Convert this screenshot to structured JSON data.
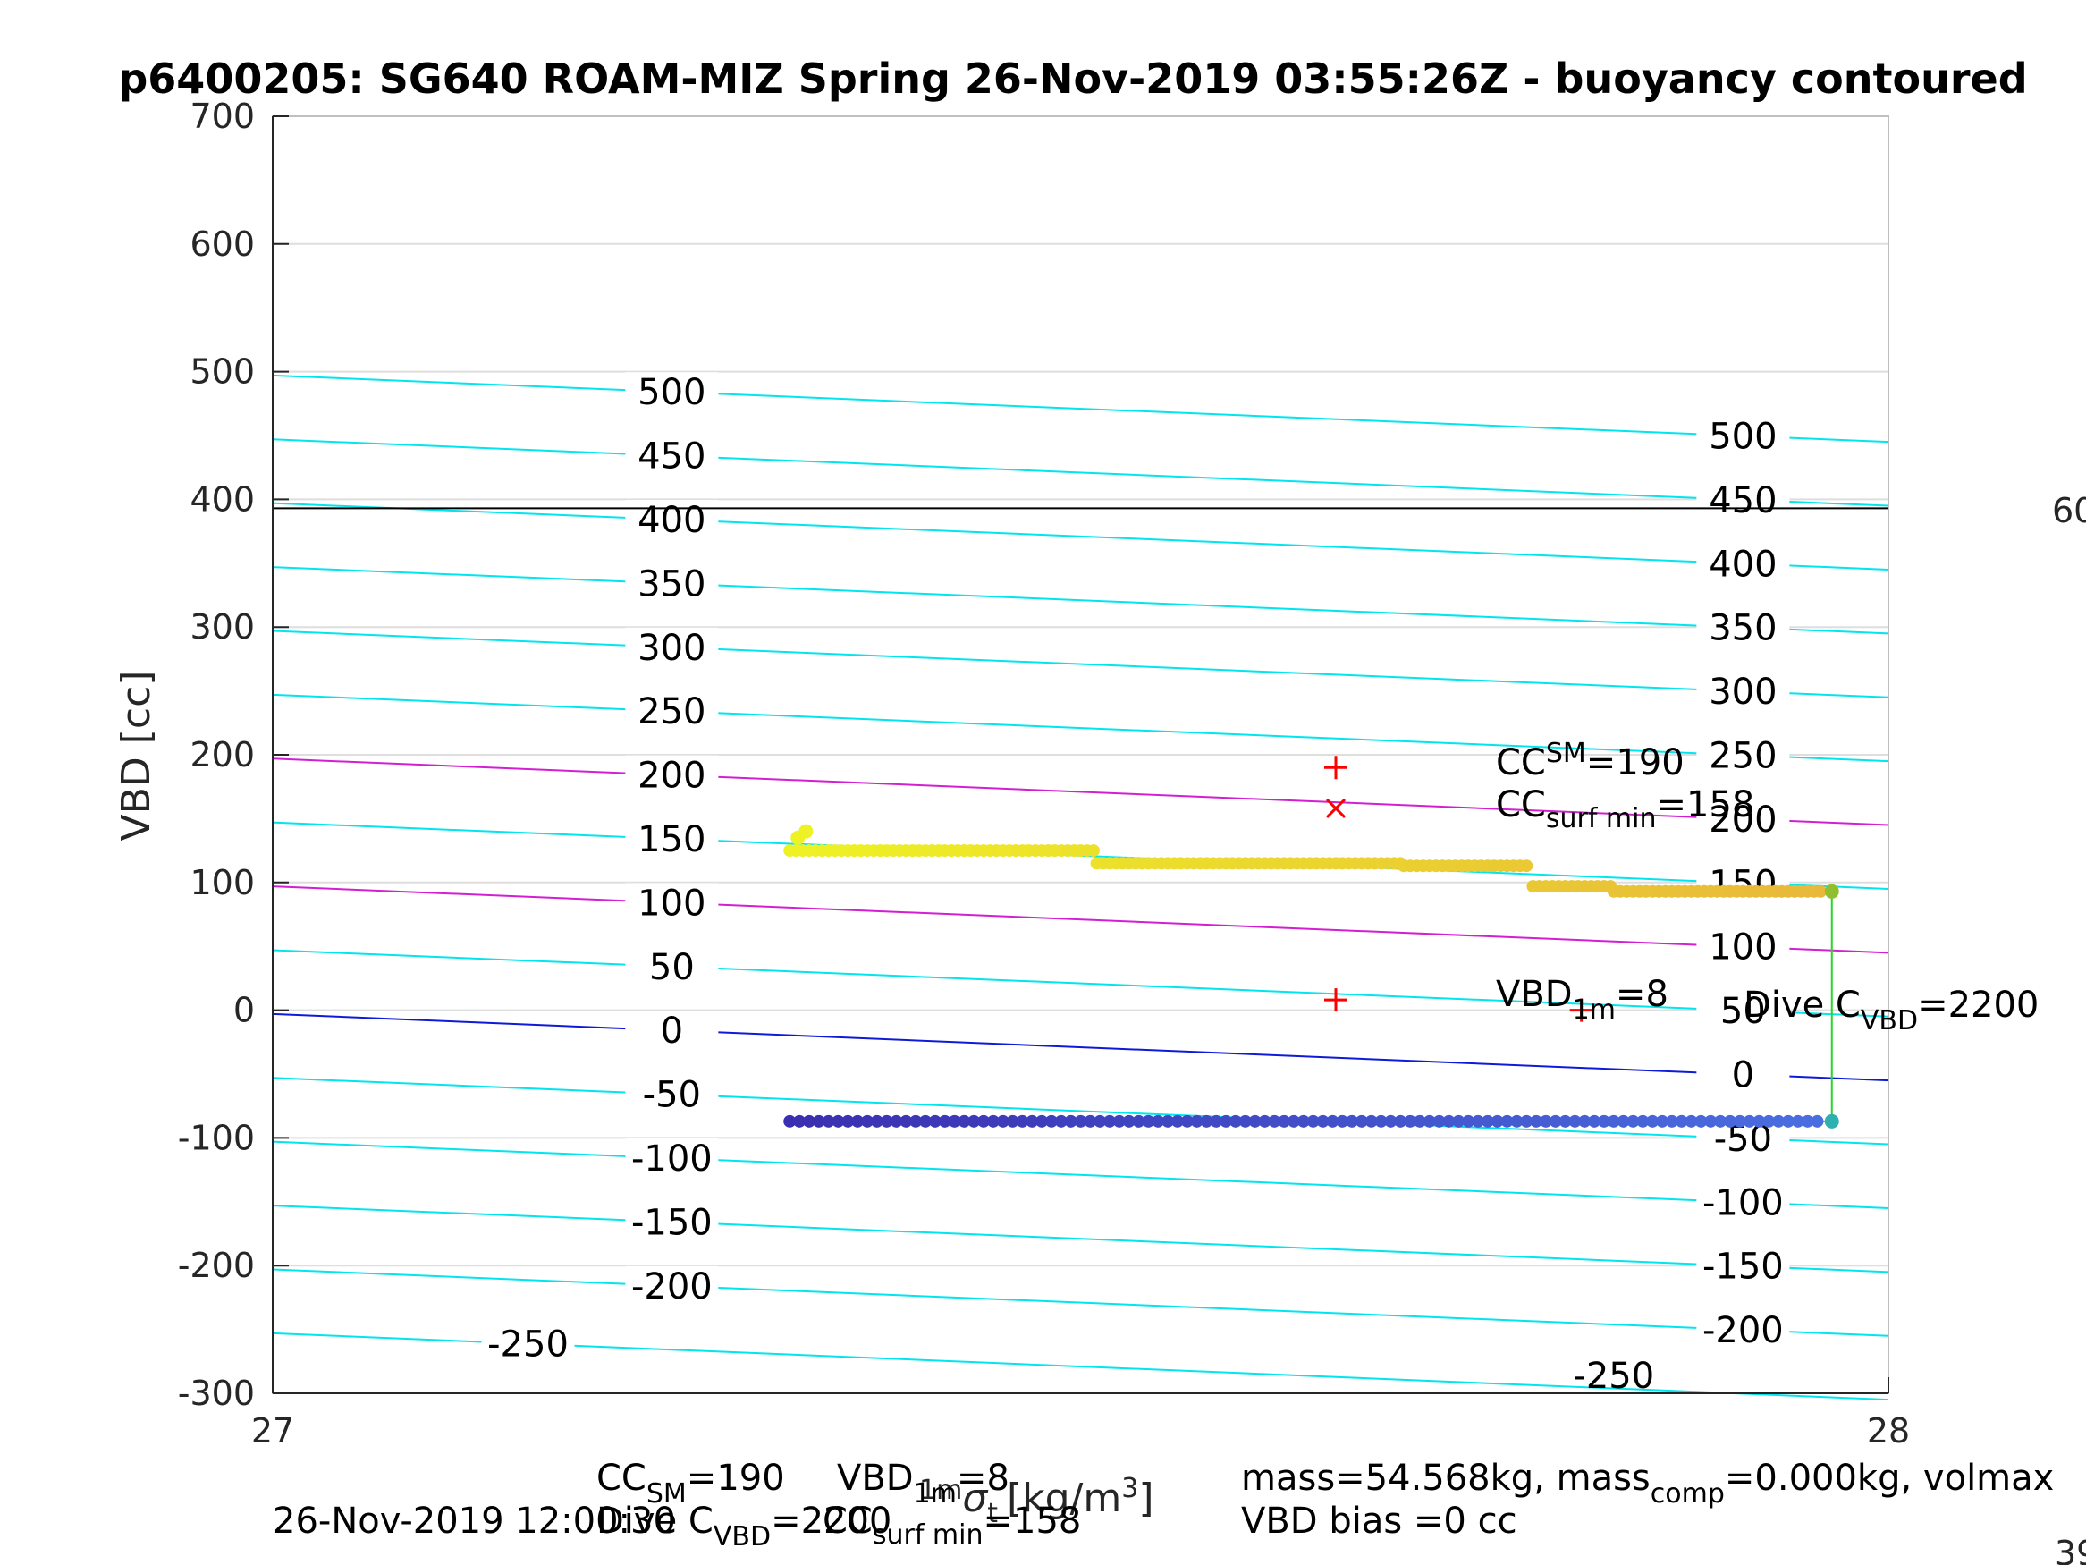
{
  "chart_data": {
    "type": "scatter",
    "title": "p6400205: SG640 ROAM-MIZ Spring 26-Nov-2019 03:55:26Z - buoyancy contoured",
    "ylabel": "VBD [cc]",
    "xlabel": {
      "text": "[kg/m",
      "sup": "3",
      "close": "]",
      "prefix_sup": "1m",
      "sym": "σ",
      "sub": "t"
    },
    "xlim": [
      27,
      28
    ],
    "ylim": [
      -300,
      700
    ],
    "xticks": [
      "27",
      "28"
    ],
    "yticks": [
      "700",
      "600",
      "500",
      "400",
      "300",
      "200",
      "100",
      "0",
      "-100",
      "-200",
      "-300"
    ],
    "grid": true,
    "reference_line_vbd": 393,
    "contours": {
      "color": "#00e5ee",
      "levels": [
        -250,
        -200,
        -150,
        -100,
        -50,
        0,
        50,
        100,
        150,
        200,
        250,
        300,
        350,
        400,
        450,
        500
      ],
      "left_labels": [
        "500",
        "450",
        "400",
        "350",
        "300",
        "250",
        "200",
        "150",
        "100",
        "50",
        "0",
        "-50",
        "-100",
        "-150",
        "-200",
        "-250"
      ],
      "right_labels": [
        "500",
        "450",
        "400",
        "350",
        "300",
        "250",
        "200",
        "150",
        "100",
        "50",
        "0",
        "-50",
        "-100",
        "-150",
        "-200",
        "-250"
      ],
      "highlight_magenta_levels": [
        200,
        100
      ],
      "highlight_blue_level": 0
    },
    "series": [
      {
        "label_hint": "climb",
        "color_start": "#eef224",
        "color_end": "#e8b83a",
        "segments": [
          {
            "x": [
              27.32,
              27.51
            ],
            "y": 125
          },
          {
            "x": [
              27.51,
              27.7
            ],
            "y": 115
          },
          {
            "x": [
              27.7,
              27.78
            ],
            "y": 113
          },
          {
            "x": [
              27.78,
              27.83
            ],
            "y": 97
          },
          {
            "x": [
              27.83,
              27.96
            ],
            "y": 93
          }
        ]
      },
      {
        "label_hint": "dive",
        "color_start": "#3a2fb0",
        "color_end": "#4a6ee0",
        "segments": [
          {
            "x": [
              27.32,
              27.96
            ],
            "y": -87
          }
        ]
      }
    ],
    "markers": [
      {
        "symbol": "+",
        "x": 27.658,
        "y": 190
      },
      {
        "symbol": "x",
        "x": 27.658,
        "y": 158
      },
      {
        "symbol": "+",
        "x": 27.658,
        "y": 8
      },
      {
        "symbol": "+",
        "x": 27.81,
        "y": 0
      }
    ]
  },
  "annotations": {
    "cc_sm": {
      "main": "CC",
      "sub": "SM",
      "value": "=190"
    },
    "cc_surf_min": {
      "main": "CC",
      "sub": "surf min",
      "value": "=158"
    },
    "vbd_1m": {
      "main": "VBD",
      "sub": "1m",
      "value": "=8"
    },
    "dive_c": {
      "main": "Dive C",
      "sub": "VBD",
      "value": "=2200"
    },
    "right_edge_1": "60",
    "right_edge_2": "39"
  },
  "footer": {
    "timestamp": "26-Nov-2019 12:00:30",
    "cc_sm": "CC",
    "cc_sm_sub": "SM",
    "cc_sm_val": "=190",
    "vbd": "VBD",
    "vbd_sub": "1m",
    "vbd_val": "=8",
    "divec": "Dive C",
    "divec_sub": "VBD",
    "divec_val": "=2200",
    "ccsurf": "CC",
    "ccsurf_sub": "surf min",
    "ccsurf_val": "=158",
    "mass_line": "mass=54.568kg, mass",
    "mass_sub": "comp",
    "mass_val": "=0.000kg, volmax",
    "vbd_bias": "VBD bias =0 cc"
  }
}
